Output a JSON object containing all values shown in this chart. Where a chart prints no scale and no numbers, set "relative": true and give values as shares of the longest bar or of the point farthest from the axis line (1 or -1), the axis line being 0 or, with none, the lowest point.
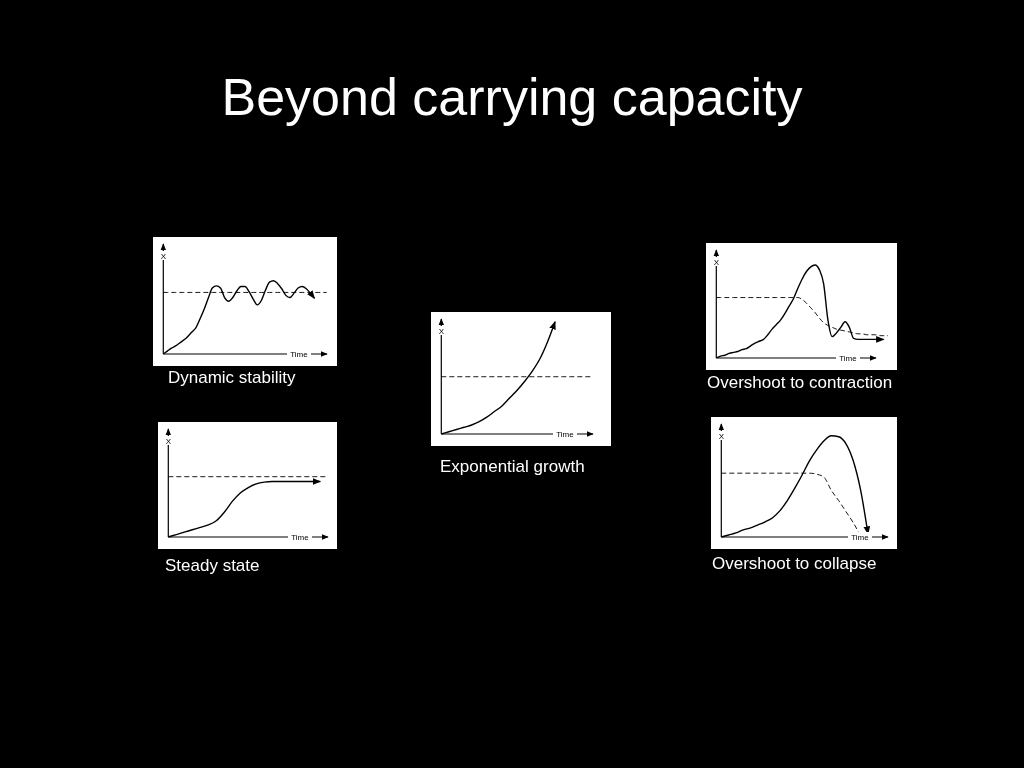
{
  "chart_data": [
    {
      "type": "other",
      "title": "Beyond carrying capacity"
    },
    {
      "type": "line",
      "title": "Dynamic stability",
      "xlabel": "Time",
      "ylabel": "X",
      "relative": true,
      "categories": [
        null,
        null,
        null,
        null,
        null,
        null,
        null,
        null,
        null,
        null,
        null,
        null,
        null,
        null,
        null,
        null,
        null,
        null,
        null,
        null,
        null,
        null,
        null,
        null,
        null,
        null,
        null,
        null,
        null,
        null,
        null,
        null,
        null,
        null,
        null,
        null,
        null,
        null,
        null,
        null,
        null
      ],
      "series": [
        {
          "color": "#000000",
          "line_style": "solid",
          "values": [
            0,
            0.04,
            0.08,
            0.11,
            0.15,
            0.19,
            0.24,
            0.3,
            0.36,
            0.48,
            0.61,
            0.76,
            0.9,
            0.93,
            0.9,
            0.77,
            0.72,
            0.77,
            0.86,
            0.92,
            0.92,
            0.85,
            0.75,
            0.67,
            0.73,
            0.87,
            0.98,
            1,
            0.96,
            0.89,
            0.8,
            0.77,
            0.83,
            0.9,
            0.92,
            0.89,
            0.83,
            0.76,
            null,
            null,
            null
          ]
        },
        {
          "color": "#000000",
          "line_style": "dashed",
          "values": [
            0.84,
            0.84,
            0.84,
            0.84,
            0.84,
            0.84,
            0.84,
            0.84,
            0.84,
            0.84,
            0.84,
            0.84,
            0.84,
            0.84,
            0.84,
            0.84,
            0.84,
            0.84,
            0.84,
            0.84,
            0.84,
            0.84,
            0.84,
            0.84,
            0.84,
            0.84,
            0.84,
            0.84,
            0.84,
            0.84,
            0.84,
            0.84,
            0.84,
            0.84,
            0.84,
            0.84,
            0.84,
            0.84,
            0.84,
            0.84,
            0.84
          ]
        }
      ]
    },
    {
      "type": "line",
      "title": "Steady state",
      "xlabel": "Time",
      "ylabel": "X",
      "relative": true,
      "categories": [
        null,
        null,
        null,
        null,
        null,
        null,
        null,
        null,
        null,
        null,
        null,
        null,
        null,
        null,
        null,
        null,
        null,
        null,
        null,
        null,
        null
      ],
      "series": [
        {
          "color": "#000000",
          "line_style": "solid",
          "values": [
            0,
            0.04,
            0.08,
            0.12,
            0.16,
            0.2,
            0.27,
            0.41,
            0.59,
            0.73,
            0.82,
            0.88,
            0.91,
            0.92,
            0.92,
            0.92,
            0.92,
            0.92,
            0.92,
            0.92,
            null
          ]
        },
        {
          "color": "#000000",
          "line_style": "dashed",
          "values": [
            1,
            1,
            1,
            1,
            1,
            1,
            1,
            1,
            1,
            1,
            1,
            1,
            1,
            1,
            1,
            1,
            1,
            1,
            1,
            1,
            1
          ]
        }
      ]
    },
    {
      "type": "line",
      "title": "Exponential growth",
      "xlabel": "Time",
      "ylabel": "X",
      "relative": true,
      "categories": [
        null,
        null,
        null,
        null,
        null,
        null,
        null,
        null,
        null,
        null,
        null,
        null,
        null,
        null,
        null,
        null,
        null,
        null,
        null,
        null,
        null
      ],
      "series": [
        {
          "color": "#000000",
          "line_style": "solid",
          "values": [
            0,
            0.02,
            0.04,
            0.06,
            0.08,
            0.11,
            0.15,
            0.2,
            0.25,
            0.32,
            0.39,
            0.47,
            0.56,
            0.67,
            0.82,
            1,
            null,
            null,
            null,
            null,
            null
          ]
        },
        {
          "color": "#000000",
          "line_style": "dashed",
          "values": [
            0.51,
            0.51,
            0.51,
            0.51,
            0.51,
            0.51,
            0.51,
            0.51,
            0.51,
            0.51,
            0.51,
            0.51,
            0.51,
            0.51,
            0.51,
            0.51,
            0.51,
            0.51,
            0.51,
            0.51,
            0.51
          ]
        }
      ]
    },
    {
      "type": "line",
      "title": "Overshoot to contraction",
      "xlabel": "Time",
      "ylabel": "X",
      "relative": true,
      "categories": [
        null,
        null,
        null,
        null,
        null,
        null,
        null,
        null,
        null,
        null,
        null,
        null,
        null,
        null,
        null,
        null,
        null,
        null,
        null,
        null,
        null,
        null,
        null,
        null,
        null,
        null,
        null,
        null,
        null,
        null,
        null,
        null,
        null,
        null,
        null,
        null,
        null,
        null,
        null,
        null,
        null
      ],
      "series": [
        {
          "color": "#000000",
          "line_style": "solid",
          "values": [
            0,
            0.02,
            0.03,
            0.05,
            0.06,
            0.07,
            0.09,
            0.1,
            0.13,
            0.16,
            0.18,
            0.2,
            0.25,
            0.31,
            0.36,
            0.41,
            0.48,
            0.56,
            0.64,
            0.75,
            0.85,
            0.93,
            0.98,
            1,
            0.95,
            0.8,
            0.41,
            0.23,
            0.27,
            0.33,
            0.39,
            0.33,
            0.21,
            0.2,
            0.2,
            0.2,
            0.2,
            0.2,
            0.2,
            0.2,
            null
          ]
        },
        {
          "color": "#000000",
          "line_style": "dashed",
          "values": [
            0.65,
            0.65,
            0.65,
            0.65,
            0.65,
            0.65,
            0.65,
            0.65,
            0.65,
            0.65,
            0.65,
            0.65,
            0.65,
            0.65,
            0.65,
            0.65,
            0.65,
            0.65,
            0.65,
            0.65,
            0.63,
            0.59,
            0.54,
            0.49,
            0.43,
            0.38,
            0.35,
            0.33,
            0.31,
            0.3,
            0.29,
            0.28,
            0.27,
            0.26,
            0.26,
            0.25,
            0.25,
            0.25,
            0.24,
            0.24,
            0.24
          ]
        }
      ]
    },
    {
      "type": "line",
      "title": "Overshoot to collapse",
      "xlabel": "Time",
      "ylabel": "X",
      "relative": true,
      "categories": [
        null,
        null,
        null,
        null,
        null,
        null,
        null,
        null,
        null,
        null,
        null,
        null,
        null,
        null,
        null,
        null,
        null,
        null,
        null,
        null,
        null
      ],
      "series": [
        {
          "color": "#000000",
          "line_style": "solid",
          "values": [
            0,
            0.02,
            0.04,
            0.07,
            0.09,
            0.12,
            0.15,
            0.19,
            0.26,
            0.36,
            0.48,
            0.61,
            0.75,
            0.86,
            0.95,
            1,
            0.99,
            0.92,
            0.75,
            0.46,
            0.03
          ]
        },
        {
          "color": "#000000",
          "line_style": "dashed",
          "values": [
            0.63,
            0.63,
            0.63,
            0.63,
            0.63,
            0.63,
            0.63,
            0.63,
            0.63,
            0.63,
            0.63,
            0.63,
            0.63,
            0.62,
            0.59,
            0.46,
            0.36,
            0.25,
            0.14,
            0.01,
            null
          ]
        }
      ]
    }
  ]
}
